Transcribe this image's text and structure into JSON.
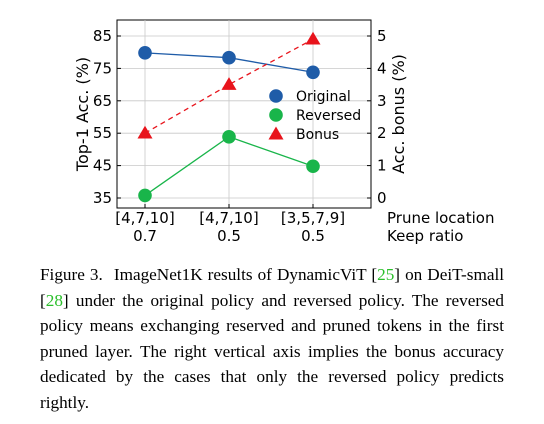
{
  "chart_data": {
    "type": "line",
    "categories": [
      {
        "location": "[4,7,10]",
        "ratio": "0.7"
      },
      {
        "location": "[4,7,10]",
        "ratio": "0.5"
      },
      {
        "location": "[3,5,7,9]",
        "ratio": "0.5"
      }
    ],
    "category_row_labels": {
      "location": "Prune location",
      "ratio": "Keep ratio"
    },
    "ylabel_left": "Top-1 Acc. (%)",
    "ylabel_right": "Acc. bonus (%)",
    "ylim_left": [
      35,
      85
    ],
    "yticks_left": [
      35,
      45,
      55,
      65,
      75,
      85
    ],
    "ylim_right": [
      0,
      5
    ],
    "yticks_right": [
      0,
      1,
      2,
      3,
      4,
      5
    ],
    "grid": true,
    "legend_position": "right",
    "series": [
      {
        "name": "Original",
        "axis": "left",
        "values": [
          79.8,
          78.3,
          73.8
        ],
        "color": "#1f5ca8",
        "marker": "circle",
        "line": "solid"
      },
      {
        "name": "Reversed",
        "axis": "left",
        "values": [
          35.8,
          53.9,
          44.8
        ],
        "color": "#19b54a",
        "marker": "circle",
        "line": "solid"
      },
      {
        "name": "Bonus",
        "axis": "right",
        "values": [
          2.0,
          3.5,
          4.9
        ],
        "color": "#e8141c",
        "marker": "triangle",
        "line": "dashed"
      }
    ]
  },
  "caption": {
    "label": "Figure 3.",
    "part1": "ImageNet1K results of DynamicViT",
    "cite1": "25",
    "part2": "on DeiT-small",
    "cite2": "28",
    "part3": "under the original policy and reversed policy. The reversed policy means exchanging reserved and pruned tokens in the first pruned layer. The right vertical axis implies the bonus accuracy dedicated by the cases that only the reversed policy predicts rightly."
  }
}
